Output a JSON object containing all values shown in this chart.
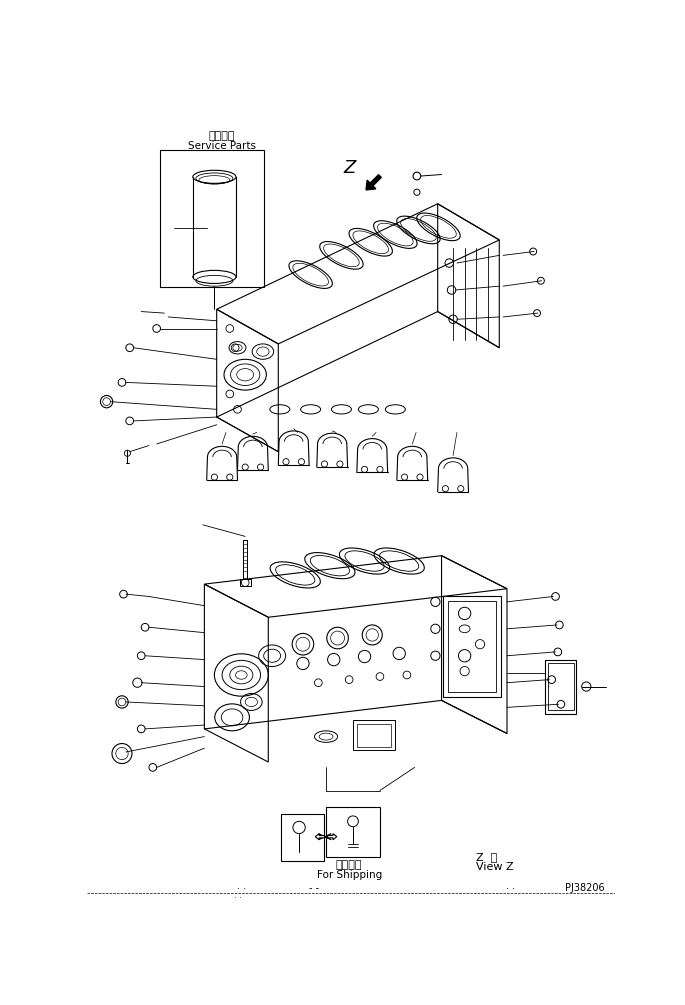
{
  "bg_color": "#ffffff",
  "line_color": "#000000",
  "fig_width": 6.85,
  "fig_height": 10.05,
  "dpi": 100,
  "service_parts_jp": "補給専用",
  "service_parts_en": "Service Parts",
  "view_z_jp": "Z  視",
  "view_z_en": "View Z",
  "shipping_jp": "運携部品",
  "shipping_en": "For Shipping",
  "part_number": "PJ38206"
}
